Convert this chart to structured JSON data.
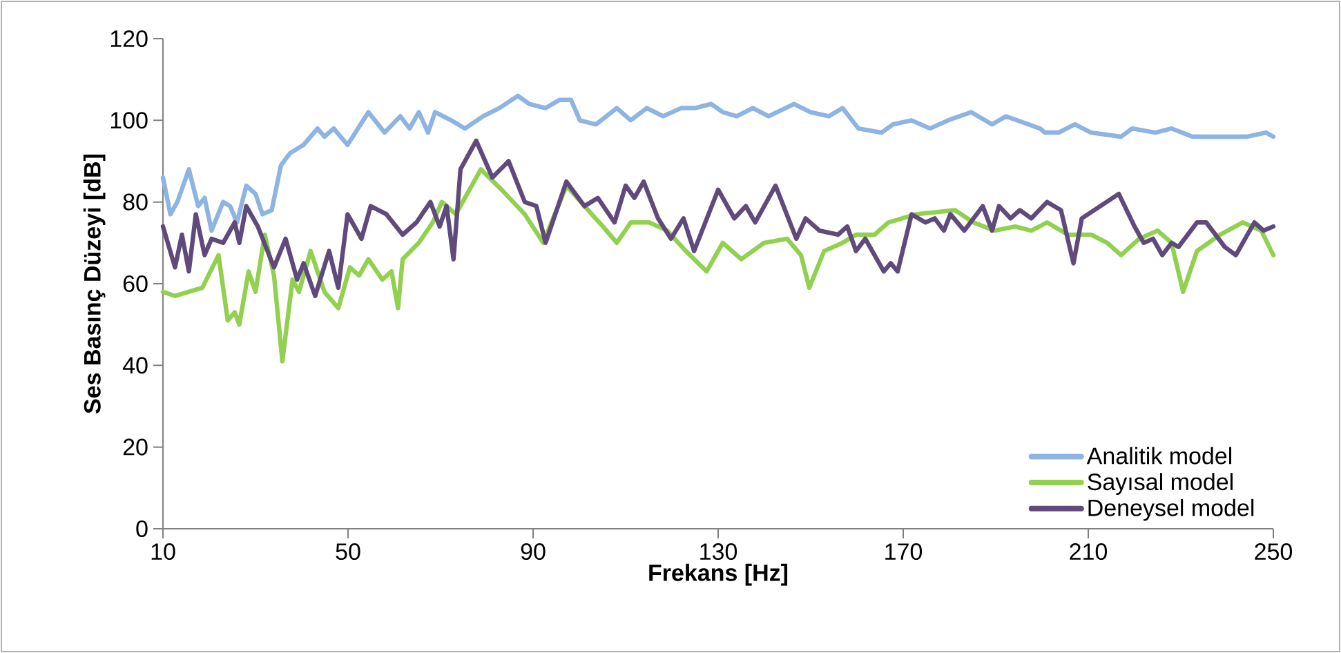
{
  "chart_data": {
    "type": "line",
    "xlabel": "Frekans [Hz]",
    "ylabel": "Ses Basınç Düzeyi [dB]",
    "xlim": [
      10,
      250
    ],
    "ylim": [
      0,
      120
    ],
    "xticks": [
      10,
      50,
      90,
      130,
      170,
      210,
      250
    ],
    "yticks": [
      0,
      20,
      40,
      60,
      80,
      100,
      120
    ],
    "grid": false,
    "legend": "bottom right",
    "marker": "none",
    "line_style": "solid",
    "series": [
      {
        "name": "Analitik model",
        "color": "#8db4e2",
        "x": [
          10,
          11.6,
          13.1,
          15.6,
          17.6,
          19,
          20.5,
          23,
          24.5,
          26,
          28,
          30,
          31.5,
          33.5,
          35.5,
          37.5,
          40.4,
          43.4,
          44.9,
          46.9,
          49.9,
          54.4,
          57.9,
          61.3,
          63.3,
          65.3,
          67.3,
          68.8,
          72.3,
          75.3,
          79.2,
          82.7,
          86.7,
          89.2,
          92.7,
          95.7,
          98.2,
          100.1,
          103.6,
          108.1,
          111.1,
          114.6,
          118.1,
          122,
          125,
          128.5,
          131,
          134,
          137.5,
          140.9,
          146.4,
          149.9,
          153.9,
          156.9,
          160.3,
          165.3,
          167.8,
          171.8,
          175.8,
          179.7,
          184.7,
          189.2,
          192.2,
          199.6,
          200.6,
          203.6,
          207.1,
          210.6,
          217.1,
          219.5,
          224.5,
          228,
          232.5,
          238.5,
          244.4,
          248.4,
          250
        ],
        "values": [
          86,
          77,
          80,
          88,
          79,
          81,
          73,
          80,
          79,
          75,
          84,
          82,
          77,
          78,
          89,
          92,
          94,
          98,
          96,
          98,
          94,
          102,
          97,
          101,
          98,
          102,
          97,
          102,
          100,
          98,
          101,
          103,
          106,
          104,
          103,
          105,
          105,
          100,
          99,
          103,
          100,
          103,
          101,
          103,
          103,
          104,
          102,
          101,
          103,
          101,
          104,
          102,
          101,
          103,
          98,
          97,
          99,
          100,
          98,
          100,
          102,
          99,
          101,
          98,
          97,
          97,
          99,
          97,
          96,
          98,
          97,
          98,
          96,
          96,
          96,
          97,
          96
        ]
      },
      {
        "name": "Sayısal model",
        "color": "#92d050",
        "x": [
          10,
          12.6,
          18.5,
          22,
          24,
          25.5,
          26.5,
          28.5,
          30,
          32,
          34,
          35.8,
          38,
          39.4,
          41.9,
          44.9,
          47.9,
          50.4,
          52.4,
          54.4,
          57.4,
          59.4,
          60.8,
          61.8,
          65.3,
          68.3,
          70.3,
          73.3,
          78.7,
          83.2,
          88.2,
          92.2,
          97.2,
          101.1,
          105.1,
          108.1,
          111.1,
          115.1,
          119,
          123,
          127.5,
          131,
          135,
          139.9,
          144.9,
          147.9,
          149.7,
          152.9,
          156.9,
          159.8,
          163.8,
          166.8,
          172.8,
          181.2,
          185.2,
          189.7,
          194.2,
          197.7,
          201.1,
          205.6,
          210.6,
          214.1,
          217.1,
          221,
          225,
          228,
          230.5,
          233.5,
          238.5,
          243.4,
          247.4,
          250
        ],
        "values": [
          58,
          57,
          59,
          67,
          51,
          53,
          50,
          63,
          58,
          72,
          62,
          41,
          61,
          58,
          68,
          58,
          54,
          64,
          62,
          66,
          61,
          63,
          54,
          66,
          70,
          75,
          80,
          77,
          88,
          83,
          77,
          70,
          84,
          79,
          74,
          70,
          75,
          75,
          73,
          68,
          63,
          70,
          66,
          70,
          71,
          67,
          59,
          68,
          70,
          72,
          72,
          75,
          77,
          78,
          75,
          73,
          74,
          73,
          75,
          72,
          72,
          70,
          67,
          71,
          73,
          70,
          58,
          68,
          72,
          75,
          73,
          67
        ]
      },
      {
        "name": "Deneysel model",
        "color": "#604a7b",
        "x": [
          10,
          12.6,
          14.1,
          15.6,
          17.1,
          19,
          20.5,
          23,
          25.5,
          26.5,
          28,
          30.5,
          34,
          36.5,
          39,
          40.4,
          42.9,
          45.9,
          47.9,
          49.9,
          52.9,
          54.9,
          58.3,
          61.8,
          64.8,
          67.8,
          69.8,
          71.3,
          72.8,
          74.3,
          77.7,
          81.2,
          84.7,
          88.2,
          90.7,
          92.7,
          97.2,
          101.1,
          104,
          107.6,
          110,
          111.9,
          113.9,
          117,
          119.8,
          122.5,
          124.8,
          130,
          133.5,
          136,
          138,
          142.4,
          146.9,
          148.9,
          151.9,
          155.9,
          157.9,
          159.8,
          161.8,
          165.8,
          167.3,
          168.8,
          171.8,
          174.8,
          176.8,
          178.8,
          180.2,
          183.2,
          187.2,
          189.2,
          190.7,
          193.2,
          195.2,
          197.7,
          201.1,
          204.1,
          206.8,
          208.6,
          212.6,
          216.6,
          220,
          222,
          224,
          226,
          228,
          229.5,
          233.5,
          235.5,
          239.5,
          241.9,
          245.9,
          247.9,
          250
        ],
        "values": [
          74,
          64,
          72,
          63,
          77,
          67,
          71,
          70,
          75,
          70,
          79,
          74,
          64,
          71,
          61,
          65,
          57,
          68,
          59,
          77,
          71,
          79,
          77,
          72,
          75,
          80,
          74,
          79,
          66,
          88,
          95,
          86,
          90,
          80,
          79,
          70,
          85,
          79,
          81,
          75,
          84,
          81,
          85,
          76,
          71,
          76,
          68,
          83,
          76,
          79,
          75,
          84,
          71,
          76,
          73,
          72,
          74,
          68,
          71,
          63,
          65,
          63,
          77,
          75,
          76,
          73,
          77,
          73,
          79,
          73,
          79,
          76,
          78,
          76,
          80,
          78,
          65,
          76,
          79,
          82,
          74,
          70,
          71,
          67,
          70,
          69,
          75,
          75,
          69,
          67,
          75,
          73,
          74
        ]
      }
    ]
  }
}
